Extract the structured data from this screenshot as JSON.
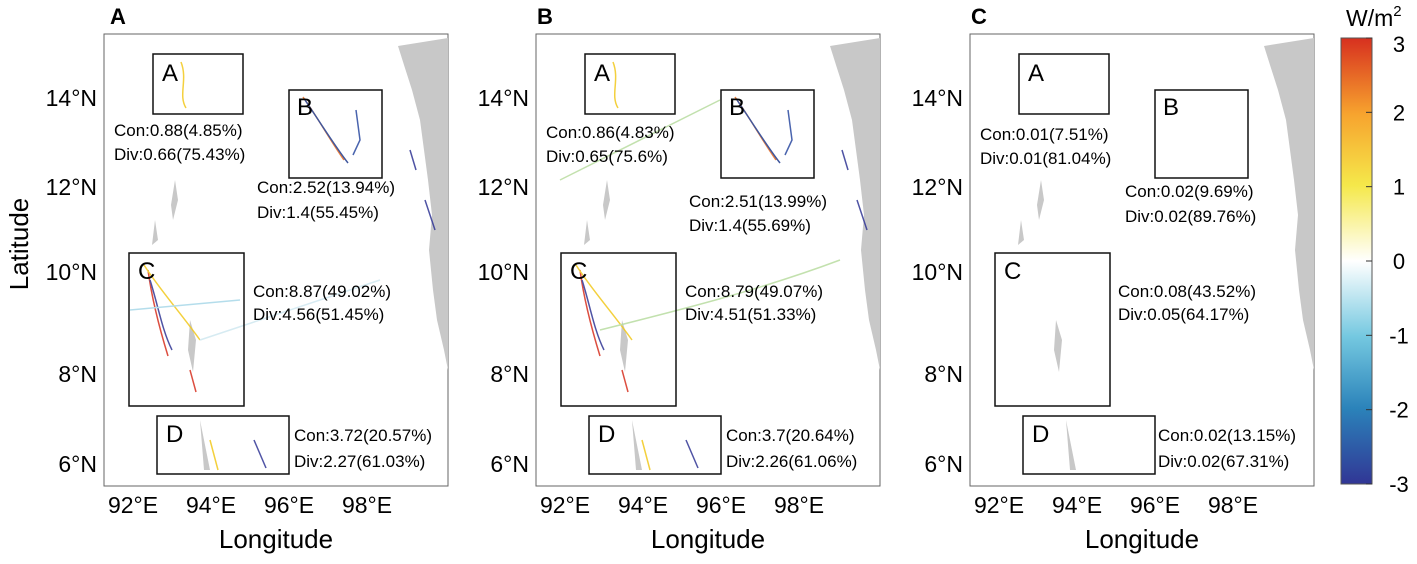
{
  "panels": [
    {
      "label": "A",
      "boxes": [
        {
          "label": "A",
          "con": "Con:0.88(4.85%)",
          "div": "Div:0.66(75.43%)"
        },
        {
          "label": "B",
          "con": "Con:2.52(13.94%)",
          "div": "Div:1.4(55.45%)"
        },
        {
          "label": "C",
          "con": "Con:8.87(49.02%)",
          "div": "Div:4.56(51.45%)"
        },
        {
          "label": "D",
          "con": "Con:3.72(20.57%)",
          "div": "Div:2.27(61.03%)"
        }
      ]
    },
    {
      "label": "B",
      "boxes": [
        {
          "label": "A",
          "con": "Con:0.86(4.83%)",
          "div": "Div:0.65(75.6%)"
        },
        {
          "label": "B",
          "con": "Con:2.51(13.99%)",
          "div": "Div:1.4(55.69%)"
        },
        {
          "label": "C",
          "con": "Con:8.79(49.07%)",
          "div": "Div:4.51(51.33%)"
        },
        {
          "label": "D",
          "con": "Con:3.7(20.64%)",
          "div": "Div:2.26(61.06%)"
        }
      ]
    },
    {
      "label": "C",
      "boxes": [
        {
          "label": "A",
          "con": "Con:0.01(7.51%)",
          "div": "Div:0.01(81.04%)"
        },
        {
          "label": "B",
          "con": "Con:0.02(9.69%)",
          "div": "Div:0.02(89.76%)"
        },
        {
          "label": "C",
          "con": "Con:0.08(43.52%)",
          "div": "Div:0.05(64.17%)"
        },
        {
          "label": "D",
          "con": "Con:0.02(13.15%)",
          "div": "Div:0.02(67.31%)"
        }
      ]
    }
  ],
  "axes": {
    "xlabel": "Longitude",
    "ylabel": "Latitude",
    "xticks": [
      "92°E",
      "94°E",
      "96°E",
      "98°E"
    ],
    "yticks": [
      "14°N",
      "12°N",
      "10°N",
      "8°N",
      "6°N"
    ]
  },
  "colorbar": {
    "unit": "W/m",
    "unit_sup": "2",
    "ticks": [
      "3",
      "2",
      "1",
      "0",
      "-1",
      "-2",
      "-3"
    ],
    "range": [
      -3,
      3
    ],
    "colors": [
      "#313695",
      "#2b83ba",
      "#74c8e0",
      "#ffffff",
      "#f5e84a",
      "#f7a32e",
      "#d7301f"
    ]
  },
  "land_color": "#c8c8c8"
}
